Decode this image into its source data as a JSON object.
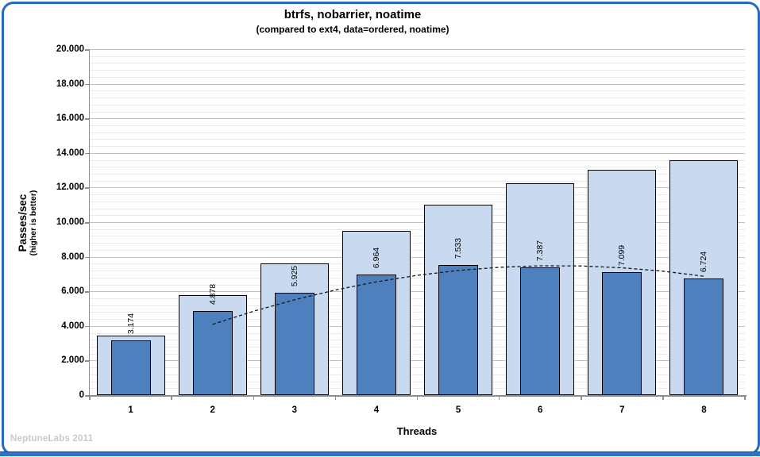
{
  "frame": {
    "watermark": "NeptuneLabs 2011",
    "border_color": "#2569c0",
    "bottom_bar_color": "#2e74c4"
  },
  "chart_data": {
    "type": "bar",
    "title": "btrfs, nobarrier, noatime",
    "subtitle": "(compared to ext4, data=ordered, noatime)",
    "xlabel": "Threads",
    "ylabel": "Passes/sec",
    "ylabel_sub": "(higher is better)",
    "categories": [
      "1",
      "2",
      "3",
      "4",
      "5",
      "6",
      "7",
      "8"
    ],
    "series": [
      {
        "name": "ext4 (data=ordered, noatime)",
        "role": "background-wide-bars",
        "color": "#c9d9f0",
        "values_estimated_from_pixels": true,
        "values": [
          3460,
          5790,
          7630,
          9510,
          11000,
          12250,
          13040,
          13570
        ]
      },
      {
        "name": "btrfs (nobarrier, noatime)",
        "role": "foreground-narrow-bars",
        "color": "#4e80bd",
        "values": [
          3174,
          4878,
          5925,
          6964,
          7533,
          7387,
          7099,
          6724
        ],
        "labels": [
          "3.174",
          "4.878",
          "5.925",
          "6.964",
          "7.533",
          "7.387",
          "7.099",
          "6.724"
        ]
      }
    ],
    "trendline": {
      "style": "dashed",
      "color": "#161616",
      "points_thread_value": [
        [
          2,
          4090
        ],
        [
          2.5,
          4850
        ],
        [
          3,
          5510
        ],
        [
          3.5,
          6080
        ],
        [
          4,
          6550
        ],
        [
          4.5,
          6925
        ],
        [
          5,
          7205
        ],
        [
          5.5,
          7390
        ],
        [
          6,
          7476
        ],
        [
          6.5,
          7468
        ],
        [
          7,
          7364
        ],
        [
          7.5,
          7164
        ],
        [
          8,
          6870
        ]
      ]
    },
    "ylim": [
      0,
      20000
    ],
    "y_major_step": 2000,
    "y_minor_step": 400,
    "y_tick_labels": [
      "20.000",
      "18.000",
      "16.000",
      "14.000",
      "12.000",
      "10.000",
      "8.000",
      "6.000",
      "4.000",
      "2.000",
      "0"
    ],
    "grid": true,
    "legend": "none"
  }
}
